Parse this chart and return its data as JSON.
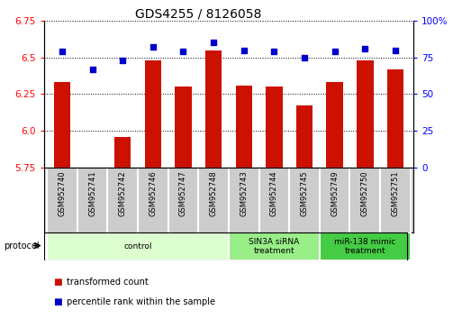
{
  "title": "GDS4255 / 8126058",
  "samples": [
    "GSM952740",
    "GSM952741",
    "GSM952742",
    "GSM952746",
    "GSM952747",
    "GSM952748",
    "GSM952743",
    "GSM952744",
    "GSM952745",
    "GSM952749",
    "GSM952750",
    "GSM952751"
  ],
  "red_values": [
    6.33,
    5.75,
    5.96,
    6.48,
    6.3,
    6.55,
    6.31,
    6.3,
    6.17,
    6.33,
    6.48,
    6.42
  ],
  "blue_values": [
    79,
    67,
    73,
    82,
    79,
    85,
    80,
    79,
    75,
    79,
    81,
    80
  ],
  "groups": [
    {
      "label": "control",
      "start": 0,
      "end": 6,
      "color": "#ddffd0"
    },
    {
      "label": "SIN3A siRNA\ntreatment",
      "start": 6,
      "end": 9,
      "color": "#99ee88"
    },
    {
      "label": "miR-138 mimic\ntreatment",
      "start": 9,
      "end": 12,
      "color": "#44cc44"
    }
  ],
  "ylim_left": [
    5.75,
    6.75
  ],
  "ylim_right": [
    0,
    100
  ],
  "yticks_left": [
    5.75,
    6.0,
    6.25,
    6.5,
    6.75
  ],
  "yticks_right": [
    0,
    25,
    50,
    75,
    100
  ],
  "ytick_labels_right": [
    "0",
    "25",
    "50",
    "75",
    "100%"
  ],
  "bar_color": "#cc1100",
  "dot_color": "#0000cc",
  "bar_width": 0.55,
  "protocol_label": "protocol",
  "legend_items": [
    {
      "color": "#cc1100",
      "label": "transformed count"
    },
    {
      "color": "#0000cc",
      "label": "percentile rank within the sample"
    }
  ],
  "sample_box_color": "#cccccc",
  "title_fontsize": 10,
  "tick_fontsize": 7.5,
  "label_fontsize": 6
}
